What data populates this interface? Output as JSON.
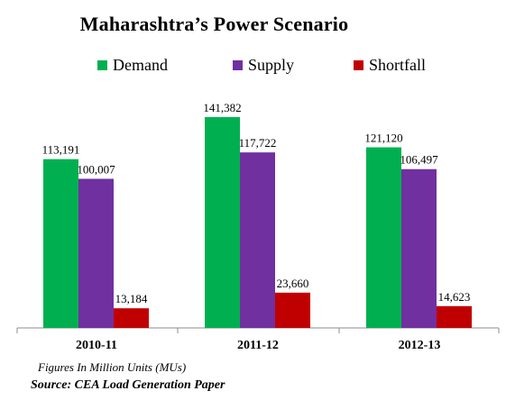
{
  "chart_data": {
    "type": "bar",
    "title": "Maharashtra’s Power Scenario",
    "categories": [
      "2010-11",
      "2011-12",
      "2012-13"
    ],
    "series": [
      {
        "name": "Demand",
        "color": "#00b050",
        "values": [
          113191,
          141382,
          121120
        ],
        "labels": [
          "113,191",
          "141,382",
          "121,120"
        ]
      },
      {
        "name": "Supply",
        "color": "#7030a0",
        "values": [
          100007,
          117722,
          106497
        ],
        "labels": [
          "100,007",
          "117,722",
          "106,497"
        ]
      },
      {
        "name": "Shortfall",
        "color": "#c00000",
        "values": [
          13184,
          23660,
          14623
        ],
        "labels": [
          "13,184",
          "23,660",
          "14,623"
        ]
      }
    ],
    "ylim": [
      0,
      141382
    ],
    "grid": false,
    "legend_position": "top",
    "note": "Figures In Million Units (MUs)",
    "source": "Source: CEA Load Generation Paper"
  }
}
